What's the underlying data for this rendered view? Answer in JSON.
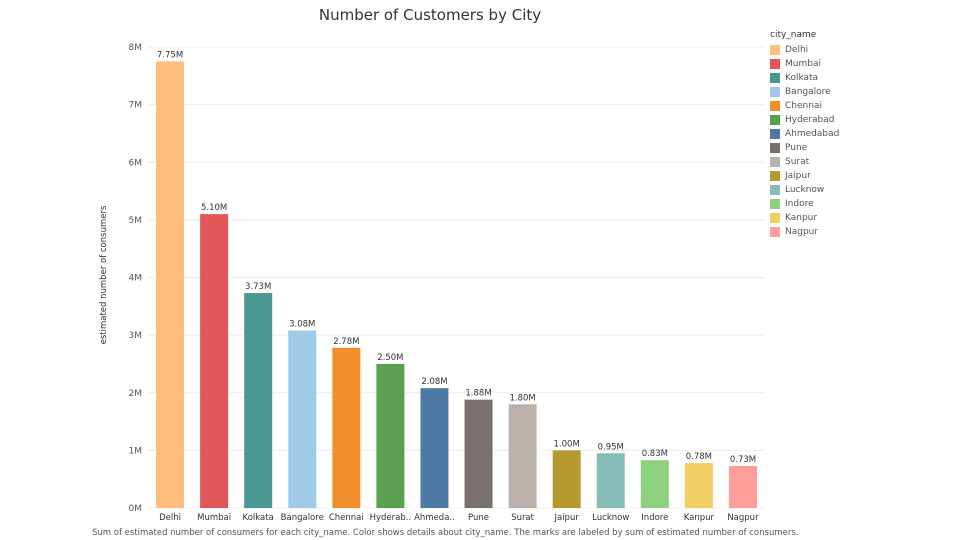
{
  "chart_data": {
    "type": "bar",
    "title": "Number of Customers by City",
    "ylabel": "estimated number of consumers",
    "xlabel": "",
    "ylim": [
      0,
      8000000
    ],
    "y_ticks": [
      {
        "value": 0,
        "label": "0M"
      },
      {
        "value": 1000000,
        "label": "1M"
      },
      {
        "value": 2000000,
        "label": "2M"
      },
      {
        "value": 3000000,
        "label": "3M"
      },
      {
        "value": 4000000,
        "label": "4M"
      },
      {
        "value": 5000000,
        "label": "5M"
      },
      {
        "value": 6000000,
        "label": "6M"
      },
      {
        "value": 7000000,
        "label": "7M"
      },
      {
        "value": 8000000,
        "label": "8M"
      }
    ],
    "grid": true,
    "legend_position": "right",
    "legend_title": "city_name",
    "categories": [
      "Delhi",
      "Mumbai",
      "Kolkata",
      "Bangalore",
      "Chennai",
      "Hyderabad",
      "Ahmedabad",
      "Pune",
      "Surat",
      "Jaipur",
      "Lucknow",
      "Indore",
      "Kanpur",
      "Nagpur"
    ],
    "tick_labels": [
      "Delhi",
      "Mumbai",
      "Kolkata",
      "Bangalore",
      "Chennai",
      "Hyderab..",
      "Ahmeda..",
      "Pune",
      "Surat",
      "Jaipur",
      "Lucknow",
      "Indore",
      "Kanpur",
      "Nagpur"
    ],
    "values": [
      7750000,
      5100000,
      3730000,
      3080000,
      2780000,
      2500000,
      2080000,
      1880000,
      1800000,
      1000000,
      950000,
      830000,
      780000,
      730000
    ],
    "data_labels": [
      "7.75M",
      "5.10M",
      "3.73M",
      "3.08M",
      "2.78M",
      "2.50M",
      "2.08M",
      "1.88M",
      "1.80M",
      "1.00M",
      "0.95M",
      "0.83M",
      "0.78M",
      "0.73M"
    ],
    "colors": [
      "#FFBE7D",
      "#E15759",
      "#499894",
      "#A0CBE8",
      "#F28E2B",
      "#59A14F",
      "#4E79A7",
      "#79706E",
      "#BAB0AC",
      "#B6992D",
      "#86BCB6",
      "#8CD17D",
      "#F1CE63",
      "#FF9D9A"
    ]
  },
  "caption": "Sum of estimated number of consumers for each city_name.  Color shows details about city_name.  The marks are labeled by sum of estimated number of consumers."
}
